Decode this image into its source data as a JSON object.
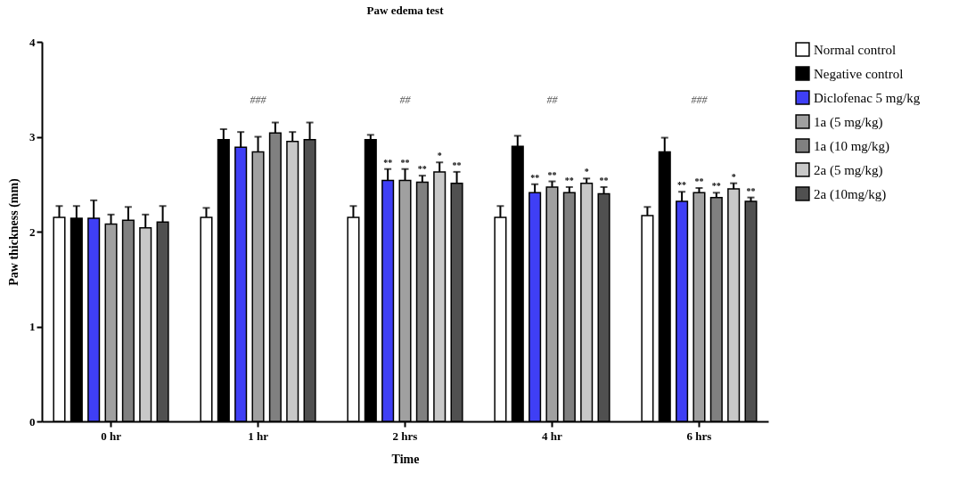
{
  "chart_data": {
    "type": "bar",
    "title": "Paw edema test",
    "xlabel": "Time",
    "ylabel": "Paw thickness (mm)",
    "categories": [
      "0 hr",
      "1 hr",
      "2 hrs",
      "4 hr",
      "6 hrs"
    ],
    "ylim": [
      0,
      4
    ],
    "yticks": [
      0,
      1,
      2,
      3,
      4
    ],
    "grid": false,
    "legend": "top right",
    "series": [
      {
        "name": "Normal control",
        "color": "#ffffff",
        "values": [
          2.15,
          2.15,
          2.15,
          2.15,
          2.17
        ],
        "errors": [
          0.12,
          0.1,
          0.12,
          0.12,
          0.09
        ]
      },
      {
        "name": "Negative control",
        "color": "#000000",
        "values": [
          2.14,
          2.97,
          2.97,
          2.9,
          2.84
        ],
        "errors": [
          0.13,
          0.11,
          0.05,
          0.11,
          0.15
        ]
      },
      {
        "name": "Diclofenac 5 mg/kg",
        "color": "#3f3ff5",
        "values": [
          2.14,
          2.89,
          2.54,
          2.41,
          2.32
        ],
        "errors": [
          0.19,
          0.16,
          0.12,
          0.09,
          0.1
        ],
        "value_labels": [
          null,
          null,
          "**",
          "**",
          "**"
        ]
      },
      {
        "name": "1a (5 mg/kg)",
        "color": "#a0a0a0",
        "values": [
          2.08,
          2.84,
          2.54,
          2.47,
          2.41
        ],
        "errors": [
          0.1,
          0.16,
          0.12,
          0.06,
          0.05
        ],
        "value_labels": [
          null,
          null,
          "**",
          "**",
          "**"
        ]
      },
      {
        "name": "1a (10 mg/kg)",
        "color": "#808080",
        "values": [
          2.12,
          3.04,
          2.52,
          2.41,
          2.36
        ],
        "errors": [
          0.14,
          0.11,
          0.07,
          0.06,
          0.05
        ],
        "value_labels": [
          null,
          null,
          "**",
          "**",
          "**"
        ]
      },
      {
        "name": "2a (5 mg/kg)",
        "color": "#c8c8c8",
        "values": [
          2.04,
          2.95,
          2.63,
          2.51,
          2.45
        ],
        "errors": [
          0.14,
          0.1,
          0.1,
          0.05,
          0.06
        ],
        "value_labels": [
          null,
          null,
          "*",
          "*",
          "*"
        ]
      },
      {
        "name": "2a (10mg/kg)",
        "color": "#505050",
        "values": [
          2.1,
          2.97,
          2.51,
          2.4,
          2.32
        ],
        "errors": [
          0.17,
          0.18,
          0.12,
          0.07,
          0.04
        ],
        "value_labels": [
          null,
          null,
          "**",
          "**",
          "**"
        ]
      }
    ],
    "annotations": [
      "###",
      "##",
      "##",
      "###"
    ]
  }
}
